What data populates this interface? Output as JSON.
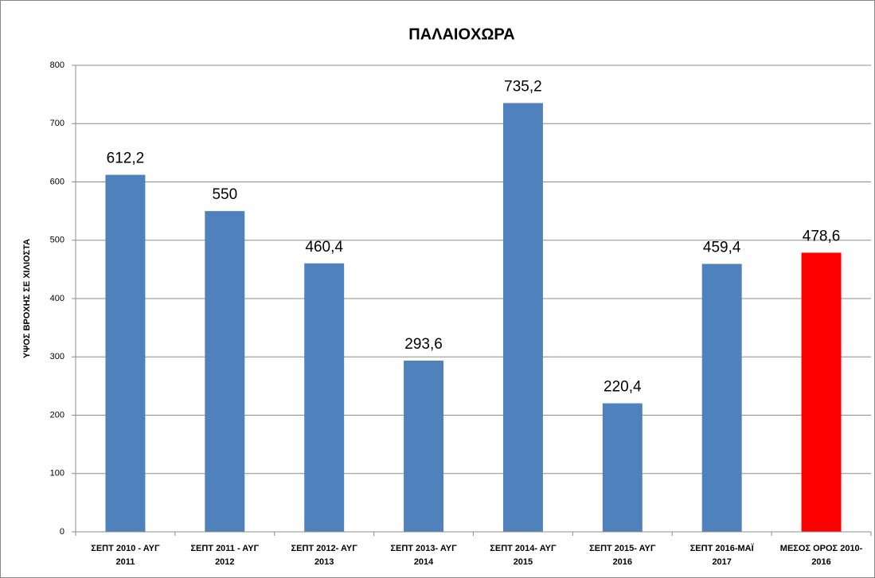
{
  "chart_data": {
    "type": "bar",
    "title": "ΠΑΛΑΙΟΧΩΡΑ",
    "y_label": "ΥΨΟΣ ΒΡΟΧΗΣ ΣΕ ΧΙΛΙΟΣΤΑ",
    "categories": [
      "ΣΕΠΤ 2010 - ΑΥΓ\n2011",
      "ΣΕΠΤ 2011 - ΑΥΓ\n2012",
      "ΣΕΠΤ 2012- ΑΥΓ\n2013",
      "ΣΕΠΤ 2013- ΑΥΓ\n2014",
      "ΣΕΠΤ 2014- ΑΥΓ\n2015",
      "ΣΕΠΤ 2015- ΑΥΓ\n2016",
      "ΣΕΠΤ 2016-ΜΑΪ\n2017",
      "ΜΕΣΟΣ ΟΡΟΣ 2010-\n2016"
    ],
    "values": [
      612.2,
      550,
      460.4,
      293.6,
      735.2,
      220.4,
      459.4,
      478.6
    ],
    "value_labels": [
      "612,2",
      "550",
      "460,4",
      "293,6",
      "735,2",
      "220,4",
      "459,4",
      "478,6"
    ],
    "colors": [
      "#4f81bd",
      "#4f81bd",
      "#4f81bd",
      "#4f81bd",
      "#4f81bd",
      "#4f81bd",
      "#4f81bd",
      "#ff0000"
    ],
    "ylim": [
      0,
      800
    ],
    "yticks": [
      0,
      100,
      200,
      300,
      400,
      500,
      600,
      700,
      800
    ],
    "grid": true
  }
}
